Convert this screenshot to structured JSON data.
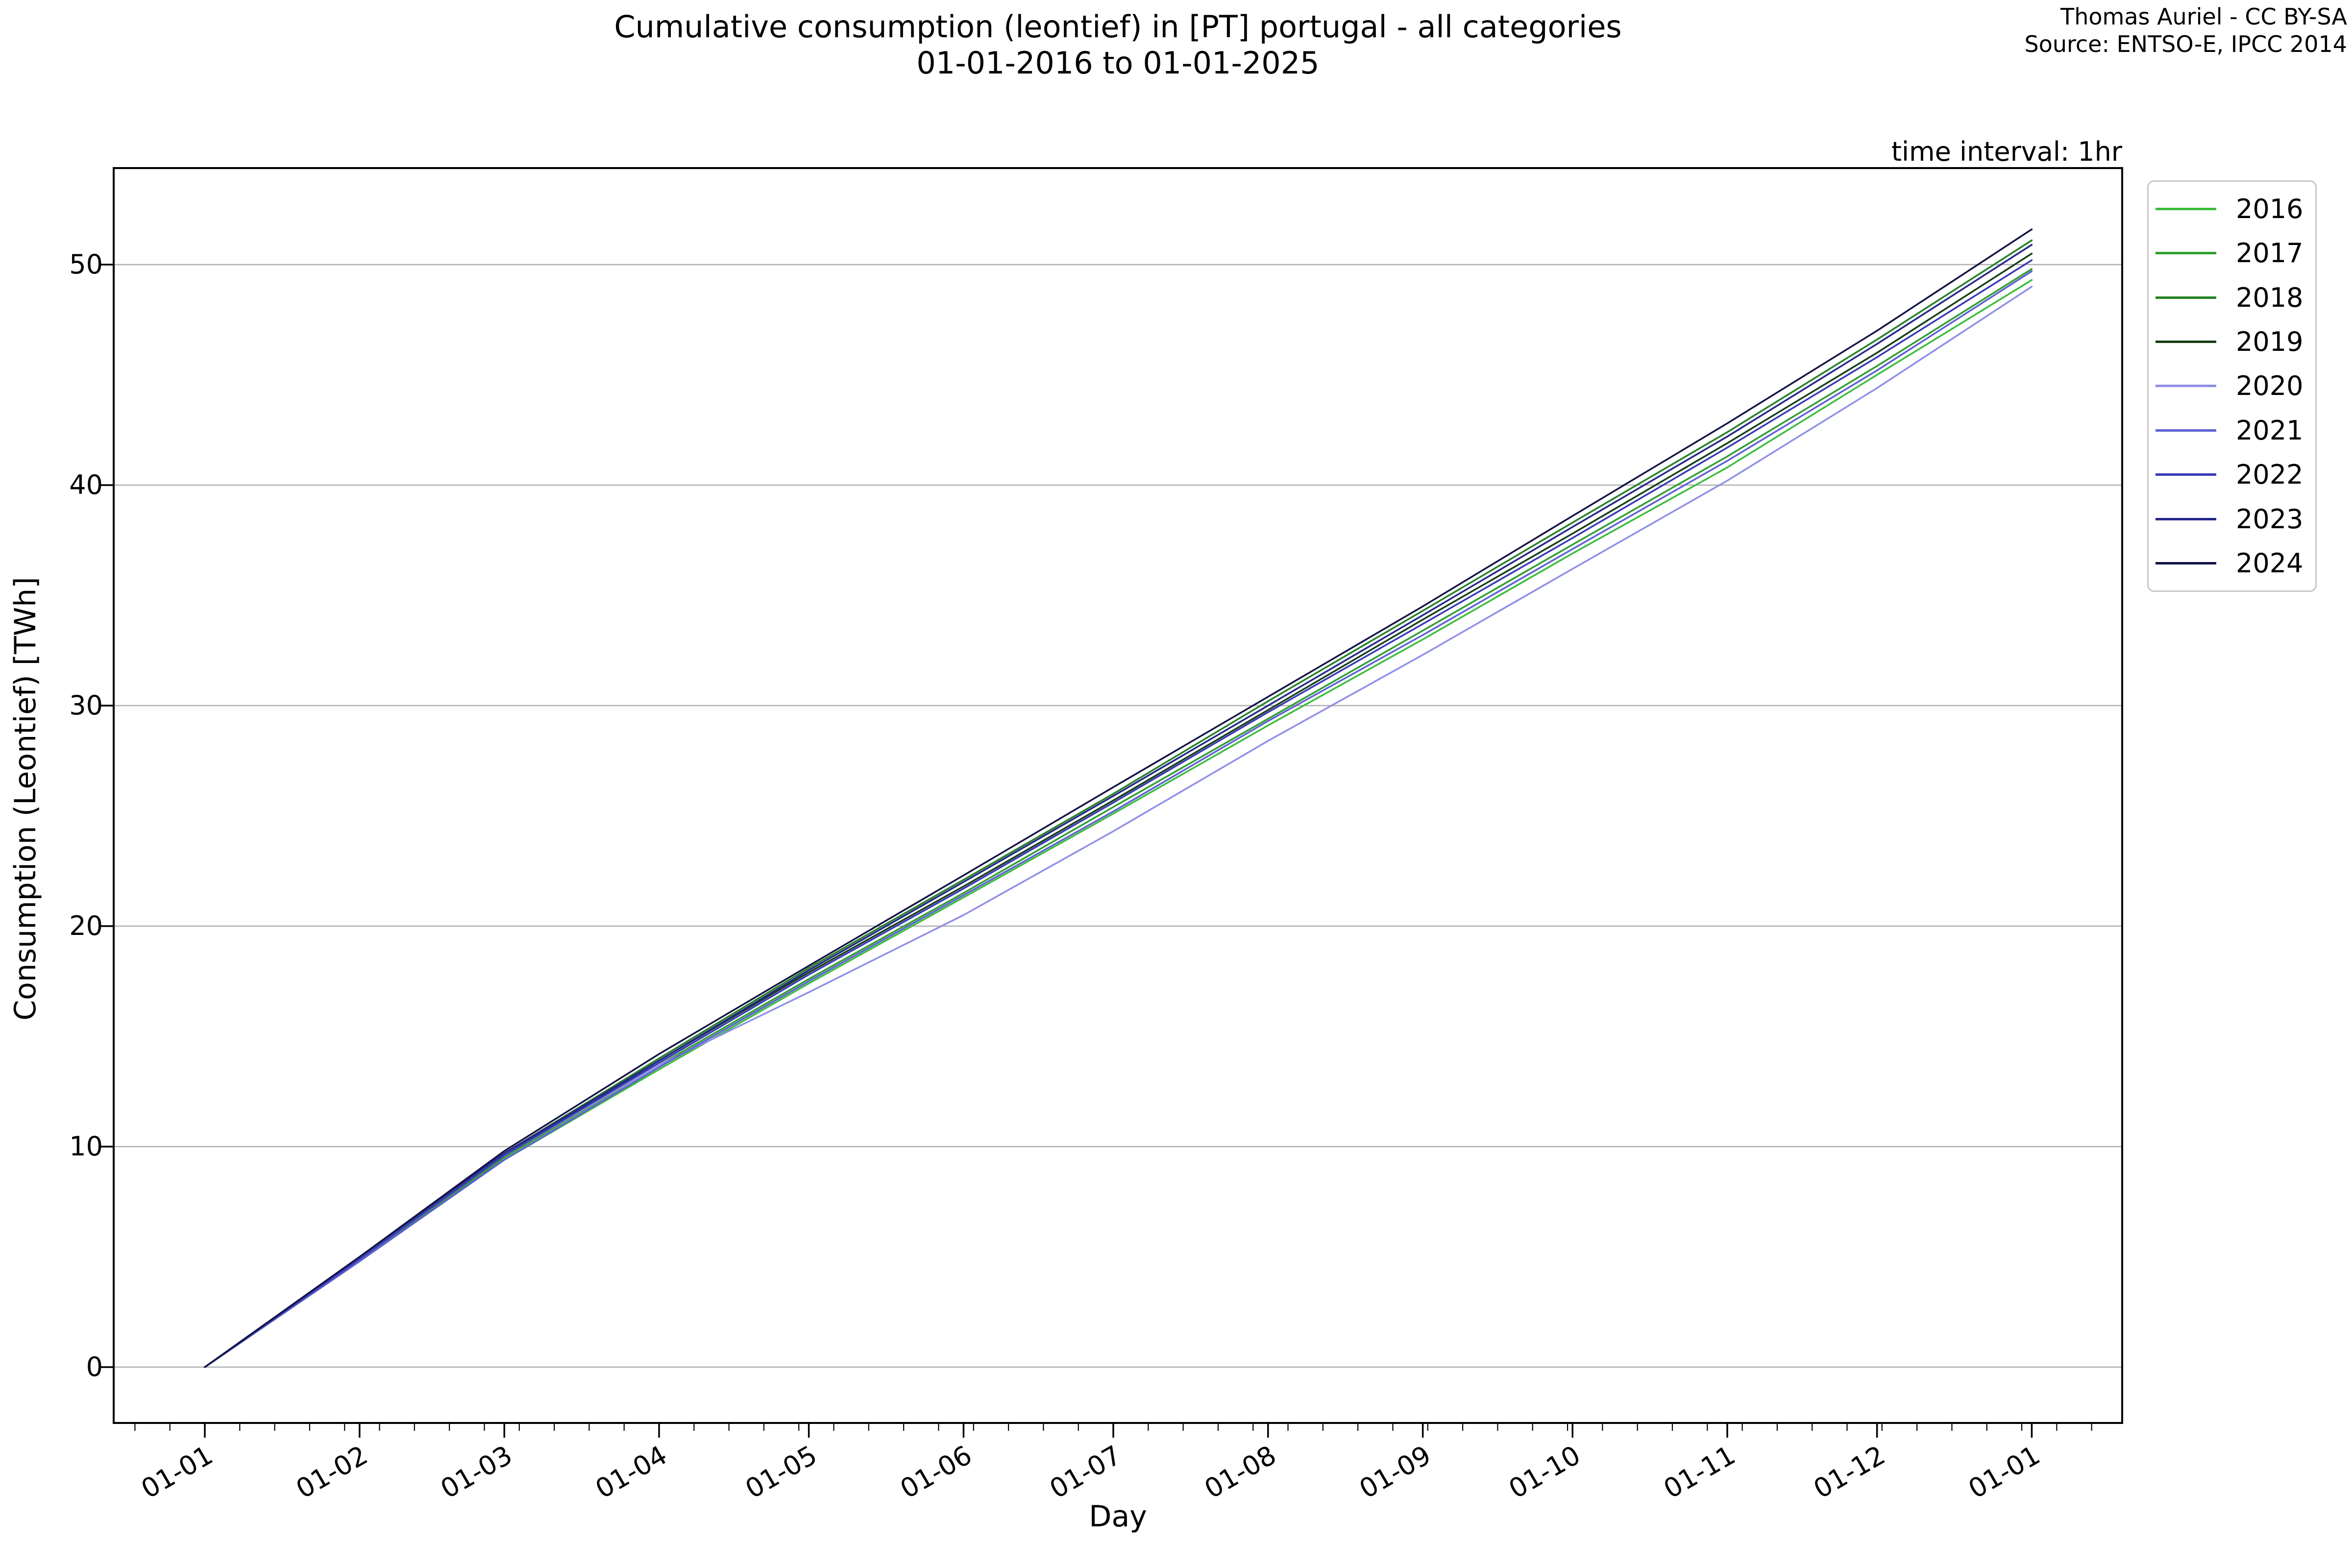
{
  "title": {
    "line1": "Cumulative consumption (leontief) in [PT] portugal - all categories",
    "line2": "01-01-2016 to 01-01-2025"
  },
  "attribution": {
    "line1": "Thomas Auriel - CC BY-SA",
    "line2": "Source: ENTSO-E, IPCC 2014"
  },
  "annotation": "time interval: 1hr",
  "axes": {
    "xlabel": "Day",
    "ylabel": "Consumption (Leontief) [TWh]",
    "y_tick_values": [
      0,
      10,
      20,
      30,
      40,
      50
    ],
    "x_tick_labels": [
      "01-01",
      "01-02",
      "01-03",
      "01-04",
      "01-05",
      "01-06",
      "01-07",
      "01-08",
      "01-09",
      "01-10",
      "01-11",
      "01-12",
      "01-01"
    ]
  },
  "legend": {
    "entries": [
      {
        "label": "2016",
        "color": "#3cbc3c"
      },
      {
        "label": "2017",
        "color": "#2e9e2e"
      },
      {
        "label": "2018",
        "color": "#248024"
      },
      {
        "label": "2019",
        "color": "#164016"
      },
      {
        "label": "2020",
        "color": "#8f8fe8"
      },
      {
        "label": "2021",
        "color": "#5f5fd3"
      },
      {
        "label": "2022",
        "color": "#3838b8"
      },
      {
        "label": "2023",
        "color": "#26268a"
      },
      {
        "label": "2024",
        "color": "#131345"
      }
    ]
  },
  "colors": {
    "background": "#ffffff",
    "grid": "#b0b0b0",
    "axis": "#000000",
    "legend_border": "#c8c8c8",
    "text": "#000000"
  },
  "chart_data": {
    "type": "line",
    "title": "Cumulative consumption (leontief) in [PT] portugal - all categories 01-01-2016 to 01-01-2025",
    "xlabel": "Day",
    "ylabel": "Consumption (Leontief) [TWh]",
    "grid": "horizontal-only",
    "legend_position": "upper right, outside axes",
    "x_tick_labels": [
      "01-01",
      "01-02",
      "01-03",
      "01-04",
      "01-05",
      "01-06",
      "01-07",
      "01-08",
      "01-09",
      "01-10",
      "01-11",
      "01-12",
      "01-01"
    ],
    "x_days": [
      0,
      31,
      60,
      91,
      121,
      152,
      182,
      213,
      244,
      274,
      305,
      335,
      366
    ],
    "x_minor_tick_interval_days": 7,
    "xlim_days": [
      -18.3,
      384.3
    ],
    "ylim": [
      -2.5,
      54.4
    ],
    "y_ticks": [
      0,
      10,
      20,
      30,
      40,
      50
    ],
    "series": [
      {
        "name": "2016",
        "color": "#3cbc3c",
        "cumulative_twh": [
          0,
          4.8,
          9.4,
          13.5,
          17.4,
          21.3,
          25.1,
          29.1,
          33.0,
          36.9,
          40.8,
          45.0,
          49.3
        ]
      },
      {
        "name": "2017",
        "color": "#2e9e2e",
        "cumulative_twh": [
          0,
          4.8,
          9.5,
          13.7,
          17.6,
          21.5,
          25.4,
          29.4,
          33.4,
          37.3,
          41.3,
          45.4,
          49.8
        ]
      },
      {
        "name": "2018",
        "color": "#248024",
        "cumulative_twh": [
          0,
          5.0,
          9.7,
          14.0,
          18.1,
          22.1,
          26.0,
          30.2,
          34.3,
          38.3,
          42.4,
          46.6,
          51.1
        ]
      },
      {
        "name": "2019",
        "color": "#164016",
        "cumulative_twh": [
          0,
          4.9,
          9.6,
          13.9,
          17.9,
          21.8,
          25.7,
          29.8,
          33.9,
          37.8,
          41.9,
          46.0,
          50.5
        ]
      },
      {
        "name": "2020",
        "color": "#8f8fe8",
        "cumulative_twh": [
          0,
          4.9,
          9.6,
          13.7,
          17.0,
          20.5,
          24.3,
          28.4,
          32.3,
          36.2,
          40.2,
          44.4,
          49.0
        ]
      },
      {
        "name": "2021",
        "color": "#5f5fd3",
        "cumulative_twh": [
          0,
          4.8,
          9.4,
          13.6,
          17.5,
          21.4,
          25.2,
          29.3,
          33.2,
          37.1,
          41.1,
          45.2,
          49.7
        ]
      },
      {
        "name": "2022",
        "color": "#3838b8",
        "cumulative_twh": [
          0,
          4.9,
          9.6,
          13.8,
          17.8,
          21.7,
          25.6,
          29.7,
          33.7,
          37.6,
          41.7,
          45.8,
          50.2
        ]
      },
      {
        "name": "2023",
        "color": "#26268a",
        "cumulative_twh": [
          0,
          5.0,
          9.7,
          13.9,
          18.0,
          22.0,
          25.9,
          30.0,
          34.1,
          38.1,
          42.2,
          46.4,
          50.9
        ]
      },
      {
        "name": "2024",
        "color": "#131345",
        "cumulative_twh": [
          0,
          5.0,
          9.8,
          14.2,
          18.2,
          22.3,
          26.3,
          30.4,
          34.5,
          38.6,
          42.8,
          47.0,
          51.6
        ]
      }
    ]
  }
}
